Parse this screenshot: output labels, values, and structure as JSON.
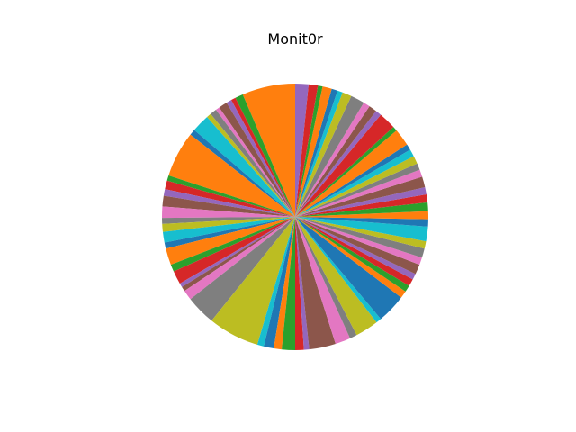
{
  "chart_data": {
    "type": "pie",
    "title": "Monit0r",
    "start_angle_deg": 90,
    "direction": "counterclockwise",
    "values": [
      8.0,
      1.2,
      0.7,
      0.8,
      1.3,
      0.6,
      1.0,
      0.7,
      2.7,
      0.9,
      6.9,
      0.8,
      1.3,
      1.0,
      1.6,
      1.7,
      0.9,
      1.2,
      1.6,
      0.9,
      2.5,
      1.1,
      2.0,
      0.6,
      0.7,
      1.5,
      4.5,
      7.7,
      1.0,
      1.5,
      1.2,
      2.0,
      1.3,
      0.8,
      4.0,
      2.3,
      1.1,
      3.5,
      0.8,
      4.4,
      1.1,
      1.0,
      1.1,
      0.9,
      1.5,
      1.1,
      1.4,
      1.1,
      2.2,
      1.1,
      1.2,
      1.3,
      1.2,
      1.1,
      1.6,
      1.1,
      1.0,
      1.2,
      1.1,
      0.9,
      2.6,
      0.7,
      2.6,
      0.9,
      1.2,
      1.0,
      2.1,
      1.4,
      0.8,
      0.9,
      1.4,
      0.7,
      1.4,
      2.0
    ],
    "colors": [
      "#ff7f0e",
      "#2ca02c",
      "#d62728",
      "#9467bd",
      "#8c564b",
      "#e377c2",
      "#7f7f7f",
      "#bcbd22",
      "#17becf",
      "#1f77b4"
    ],
    "legend": "none"
  }
}
